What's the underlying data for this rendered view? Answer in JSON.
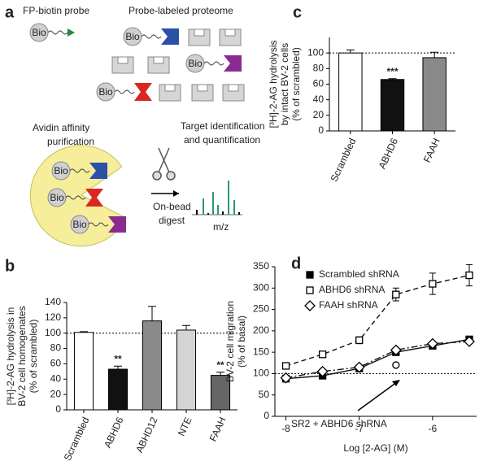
{
  "panel_a": {
    "letter": "a",
    "probe_title": "FP-biotin probe",
    "proteome_title": "Probe-labeled proteome",
    "purification": [
      "Avidin affinity",
      "purification"
    ],
    "identification": [
      "Target identification",
      "and quantification"
    ],
    "digest": [
      "On-bead",
      "digest"
    ],
    "spectrum_axis": "m/z",
    "bio": "Bio"
  },
  "chart_data": [
    {
      "type": "bar",
      "letter": "b",
      "ylabel": [
        "[³H]-2-AG hydrolysis in",
        "BV-2 cell homogenates",
        "(% of scrambled)"
      ],
      "categories": [
        "Scrambled",
        "ABHD6",
        "ABHD12",
        "NTE",
        "FAAH"
      ],
      "values": [
        101,
        53,
        116,
        104,
        45
      ],
      "errors": [
        1,
        4,
        19,
        6,
        4
      ],
      "colors": [
        "#ffffff",
        "#111111",
        "#8a8a8a",
        "#d4d4d4",
        "#666666"
      ],
      "significance": [
        null,
        "**",
        null,
        null,
        "**"
      ],
      "reference_line": 100,
      "ylim": [
        0,
        140
      ],
      "yticks": [
        0,
        20,
        40,
        60,
        80,
        100,
        120,
        140
      ]
    },
    {
      "type": "bar",
      "letter": "c",
      "ylabel": [
        "[³H]-2-AG hydrolysis",
        "by intact BV-2 cells",
        "(% of scrambled)"
      ],
      "categories": [
        "Scrambled",
        "ABHD6",
        "FAAH"
      ],
      "values": [
        100,
        66,
        94
      ],
      "errors": [
        4,
        1,
        7
      ],
      "colors": [
        "#ffffff",
        "#111111",
        "#8a8a8a"
      ],
      "significance": [
        null,
        "***",
        null
      ],
      "reference_line": 100,
      "ylim": [
        0,
        120
      ],
      "yticks": [
        0,
        20,
        40,
        60,
        80,
        100
      ]
    },
    {
      "type": "line",
      "letter": "d",
      "ylabel": [
        "BV-2 cell migration",
        "(% of basal)"
      ],
      "xlabel": "Log [2-AG] (M)",
      "x": [
        -8,
        -7.5,
        -7,
        -6.5,
        -6,
        -5.5
      ],
      "xlim": [
        -8.15,
        -5.4
      ],
      "xticks": [
        -8,
        -7,
        -6
      ],
      "ylim": [
        0,
        350
      ],
      "yticks": [
        0,
        50,
        100,
        150,
        200,
        250,
        300,
        350
      ],
      "reference_line": 100,
      "series": [
        {
          "name": "Scrambled shRNA",
          "color": "#111111",
          "marker": "filled-square",
          "dash": "none",
          "values": [
            88,
            95,
            112,
            150,
            165,
            180
          ]
        },
        {
          "name": "ABHD6 shRNA",
          "color": "#111111",
          "marker": "square",
          "dash": "6 4",
          "values": [
            118,
            145,
            178,
            285,
            310,
            330
          ],
          "errors": [
            5,
            5,
            8,
            15,
            25,
            25
          ]
        },
        {
          "name": "FAAH shRNA",
          "color": "#111111",
          "marker": "diamond",
          "dash": "8 3 2 3",
          "values": [
            90,
            105,
            115,
            155,
            170,
            175
          ]
        },
        {
          "name": "SR2 + ABHD6 shRNA",
          "color": "#111111",
          "marker": "circle",
          "dash": "none",
          "values": [
            null,
            null,
            null,
            120,
            null,
            null
          ]
        }
      ]
    }
  ]
}
